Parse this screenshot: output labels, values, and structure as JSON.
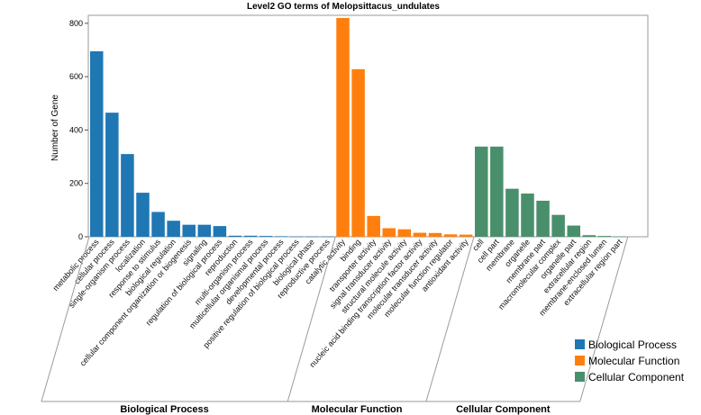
{
  "chart_data": {
    "type": "bar",
    "title": "Level2 GO terms of Melopsittacus_undulates",
    "xlabel": "",
    "ylabel": "Number of Gene",
    "ylim": [
      0,
      830
    ],
    "yticks": [
      0,
      200,
      400,
      600,
      800
    ],
    "grid": false,
    "legend_position": "bottom-right",
    "groups": [
      {
        "name": "Biological Process",
        "color": "#1f77b4",
        "categories": [
          "metabolic process",
          "cellular process",
          "single-organism process",
          "localization",
          "response to stimulus",
          "biological regulation",
          "cellular component organization or biogenesis",
          "signaling",
          "regulation of biological process",
          "reproduction",
          "multi-organism process",
          "multicellular organismal process",
          "developmental process",
          "positive regulation of biological process",
          "biological phase",
          "reproductive process"
        ],
        "values": [
          695,
          465,
          310,
          165,
          93,
          60,
          45,
          45,
          40,
          4,
          4,
          3,
          2,
          1,
          1,
          1
        ]
      },
      {
        "name": "Molecular Function",
        "color": "#ff7f0e",
        "categories": [
          "catalytic activity",
          "binding",
          "transporter activity",
          "signal transducer activity",
          "structural molecule activity",
          "nucleic acid binding transcription factor activity",
          "molecular transducer activity",
          "molecular function regulator",
          "antioxidant activity"
        ],
        "values": [
          820,
          628,
          78,
          32,
          28,
          15,
          14,
          9,
          8
        ]
      },
      {
        "name": "Cellular Component",
        "color": "#4a8f6b",
        "categories": [
          "cell",
          "cell part",
          "membrane",
          "organelle",
          "membrane part",
          "macromolecular complex",
          "organelle part",
          "extracellular region",
          "membrane-enclosed lumen",
          "extracellular region part"
        ],
        "values": [
          338,
          338,
          180,
          162,
          135,
          82,
          42,
          6,
          3,
          1
        ]
      }
    ]
  }
}
